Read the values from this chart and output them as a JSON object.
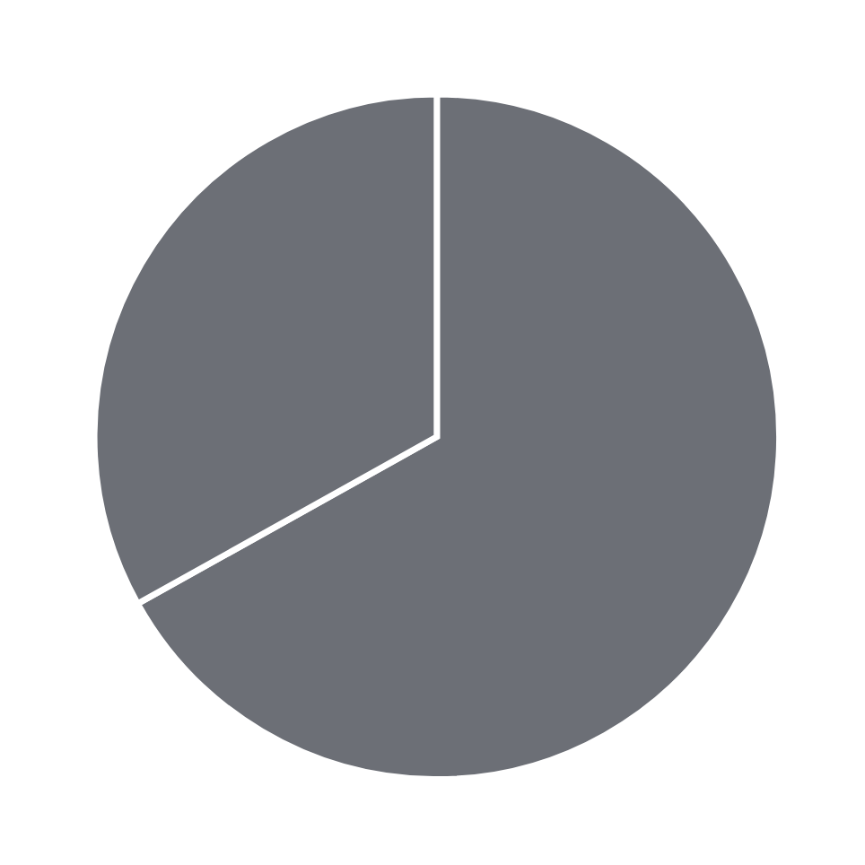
{
  "chart_data": {
    "type": "pie",
    "categories": [
      null,
      null
    ],
    "values": [
      66.9,
      33.1
    ],
    "colors": [
      "#6c6f76",
      "#6c6f76"
    ]
  }
}
